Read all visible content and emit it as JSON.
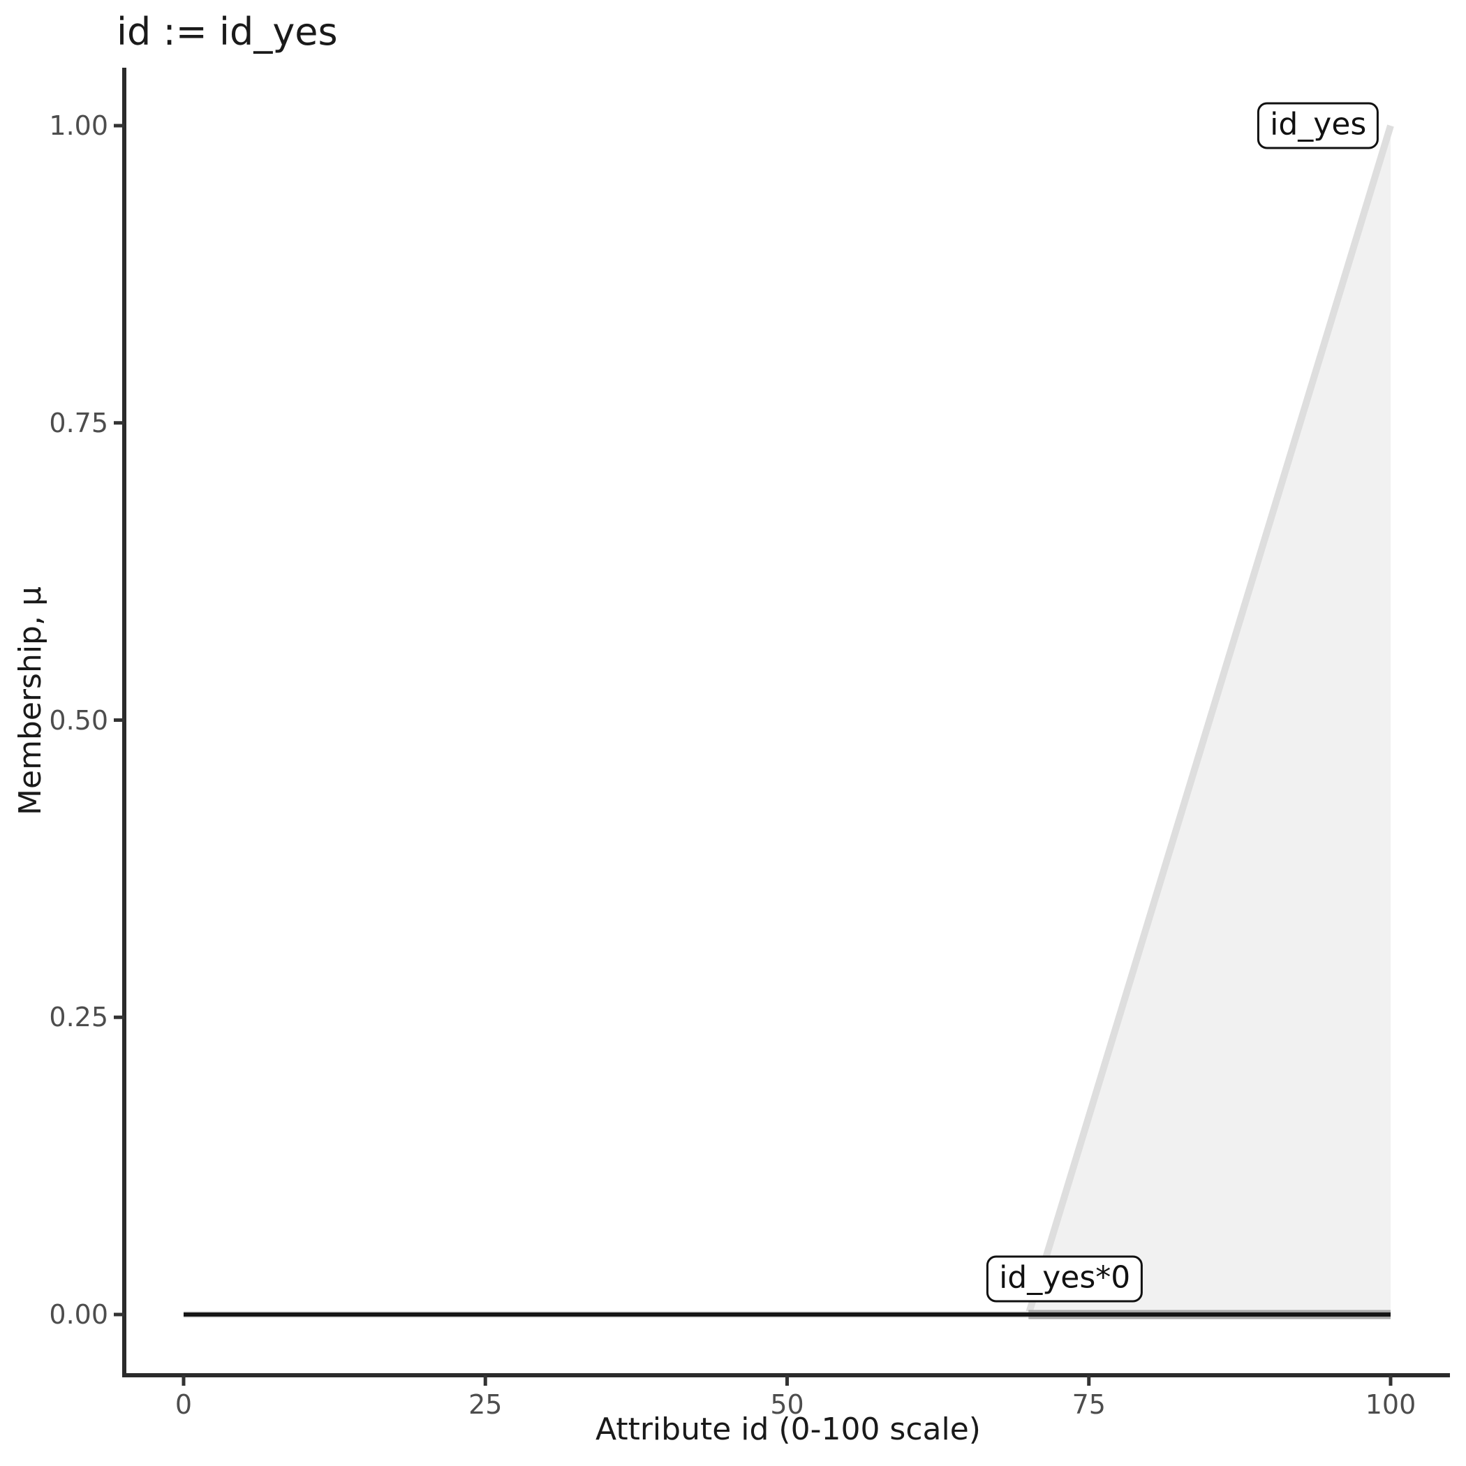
{
  "title": "id := id_yes",
  "chart_data": {
    "type": "area",
    "title": "id := id_yes",
    "xlabel": "Attribute id (0-100 scale)",
    "ylabel": "Membership, μ",
    "xlim": [
      0,
      100
    ],
    "ylim": [
      0,
      1
    ],
    "x_ticks": [
      "0",
      "25",
      "50",
      "75",
      "100"
    ],
    "y_ticks": [
      "0.00",
      "0.25",
      "0.50",
      "0.75",
      "1.00"
    ],
    "grid": false,
    "legend_position": "none",
    "series": [
      {
        "name": "id_yes",
        "description": "fuzzy membership function, 0 for x<=70 rising linearly to 1 at x=100",
        "points": [
          [
            0,
            0
          ],
          [
            70,
            0
          ],
          [
            100,
            1
          ]
        ],
        "fill_points": [
          [
            70,
            0
          ],
          [
            100,
            1
          ],
          [
            100,
            0
          ]
        ],
        "line_color": "#dedede",
        "fill_color": "#f1f1f1",
        "line_width": 10
      },
      {
        "name": "id_yes-support-band",
        "description": "gray underline over the support of id_yes at mu=0",
        "points": [
          [
            70,
            0
          ],
          [
            100,
            0
          ]
        ],
        "line_color": "#a9a9a9",
        "line_width": 13
      },
      {
        "name": "id_yes*0",
        "description": "activated membership function id_yes scaled by 0, flat at mu=0",
        "points": [
          [
            0,
            0
          ],
          [
            100,
            0
          ]
        ],
        "line_color": "#161616",
        "line_width": 6
      }
    ],
    "annotations": [
      {
        "label": "id_yes",
        "x": 94,
        "y": 1.0
      },
      {
        "label": "id_yes*0",
        "x": 73,
        "y": 0.03
      }
    ]
  },
  "colors": {
    "axis_line": "#2b2b2b",
    "tick_mark": "#333333",
    "tick_label": "#4d4d4d",
    "text": "#1a1a1a",
    "annotation_border": "#111111",
    "annotation_bg": "#ffffff"
  }
}
